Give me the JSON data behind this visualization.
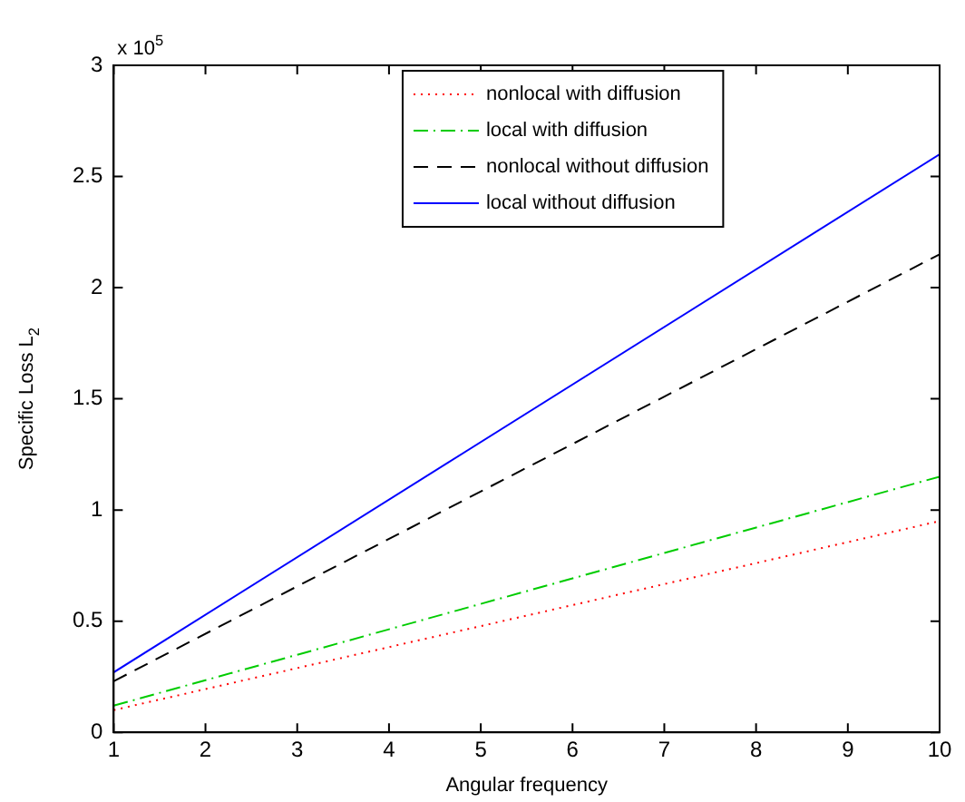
{
  "chart_data": {
    "type": "line",
    "xlabel": "Angular frequency",
    "ylabel": "Specific Loss L$_{2}$",
    "annotations": [
      "x 10$^{5}$"
    ],
    "x": [
      1,
      10
    ],
    "xlim": [
      1,
      10
    ],
    "xticks": [
      1,
      2,
      3,
      4,
      5,
      6,
      7,
      8,
      9,
      10
    ],
    "ylim": [
      0,
      3
    ],
    "yticks": [
      0,
      0.5,
      1,
      1.5,
      2,
      2.5,
      3
    ],
    "grid": false,
    "legend": "top",
    "marker": "none",
    "series": [
      {
        "name": "nonlocal with diffusion",
        "color": "#ff0000",
        "line_style": "dotted",
        "values": [
          0.1,
          0.95
        ]
      },
      {
        "name": "local with diffusion",
        "color": "#00cc00",
        "line_style": "dashdot",
        "values": [
          0.12,
          1.15
        ]
      },
      {
        "name": "nonlocal without diffusion",
        "color": "#000000",
        "line_style": "dashed",
        "values": [
          0.23,
          2.15
        ]
      },
      {
        "name": "local without diffusion",
        "color": "#0000ff",
        "line_style": "solid",
        "values": [
          0.27,
          2.6
        ]
      }
    ]
  }
}
